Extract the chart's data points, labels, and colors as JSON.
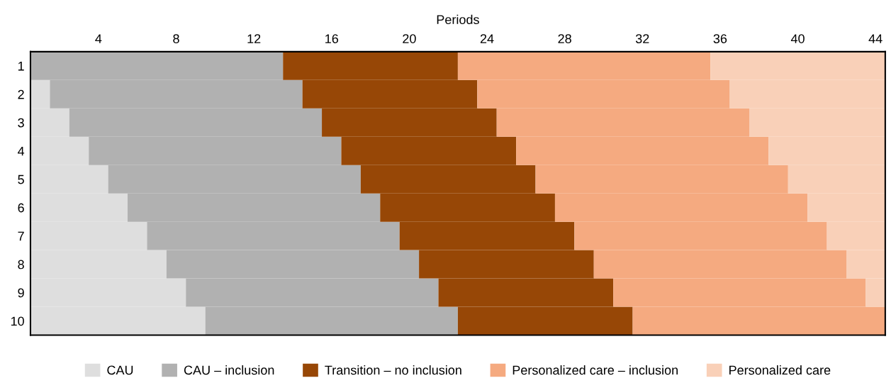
{
  "chart_data": {
    "type": "bar",
    "orientation": "horizontal",
    "stacked": true,
    "xlabel": "Periods",
    "categories": [
      "1",
      "2",
      "3",
      "4",
      "5",
      "6",
      "7",
      "8",
      "9",
      "10"
    ],
    "xlim": [
      0,
      44
    ],
    "xticks": [
      {
        "value": 3.5,
        "label": "4"
      },
      {
        "value": 7.5,
        "label": "8"
      },
      {
        "value": 11.5,
        "label": "12"
      },
      {
        "value": 15.5,
        "label": "16"
      },
      {
        "value": 19.5,
        "label": "20"
      },
      {
        "value": 23.5,
        "label": "24"
      },
      {
        "value": 27.5,
        "label": "28"
      },
      {
        "value": 31.5,
        "label": "32"
      },
      {
        "value": 35.5,
        "label": "36"
      },
      {
        "value": 39.5,
        "label": "40"
      },
      {
        "value": 43.5,
        "label": "44"
      }
    ],
    "series": [
      {
        "name": "CAU",
        "color": "#dedede",
        "values": [
          0,
          1,
          2,
          3,
          4,
          5,
          6,
          7,
          8,
          9
        ]
      },
      {
        "name": "CAU – inclusion",
        "color": "#b1b1b1",
        "values": [
          13,
          13,
          13,
          13,
          13,
          13,
          13,
          13,
          13,
          13
        ]
      },
      {
        "name": "Transition – no inclusion",
        "color": "#974706",
        "values": [
          9,
          9,
          9,
          9,
          9,
          9,
          9,
          9,
          9,
          9
        ]
      },
      {
        "name": "Personalized care – inclusion",
        "color": "#f5aa80",
        "values": [
          13,
          13,
          13,
          13,
          13,
          13,
          13,
          13,
          13,
          13
        ]
      },
      {
        "name": "Personalized care",
        "color": "#f9d0b8",
        "values": [
          9,
          8,
          7,
          6,
          5,
          4,
          3,
          2,
          1,
          0
        ]
      }
    ],
    "legend": "bottom"
  }
}
